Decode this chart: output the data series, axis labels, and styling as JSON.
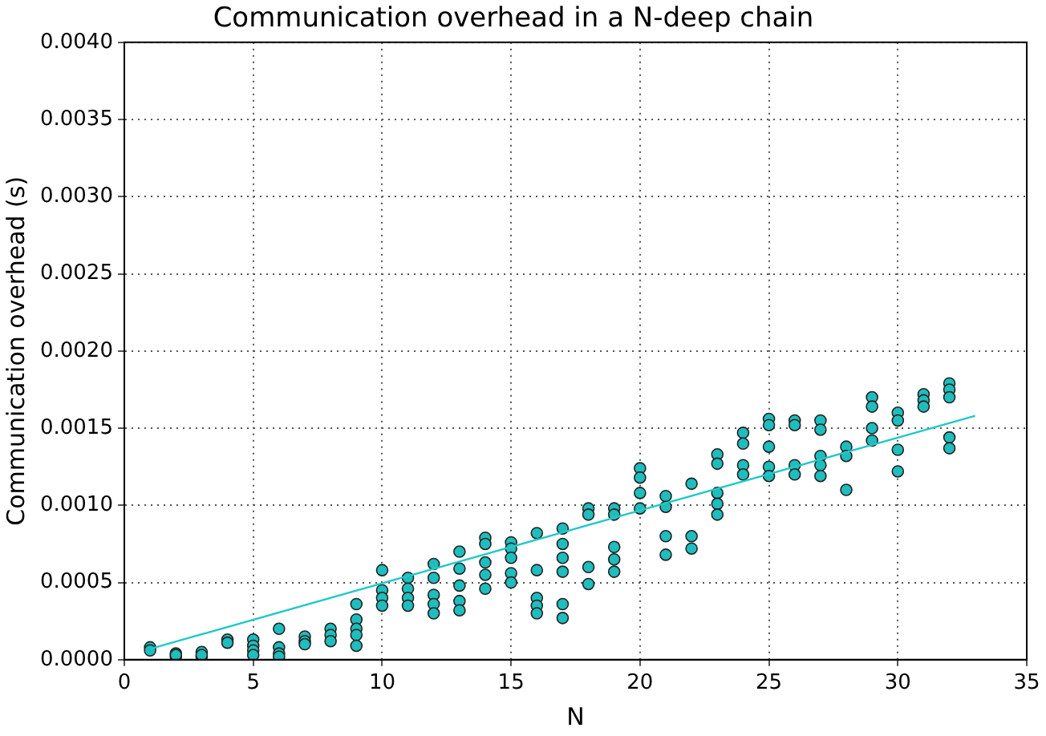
{
  "chart_data": {
    "type": "scatter",
    "title": "Communication overhead in a N-deep chain",
    "xlabel": "N",
    "ylabel": "Communication overhead (s)",
    "xlim": [
      0,
      35
    ],
    "xticks": [
      0,
      5,
      10,
      15,
      20,
      25,
      30,
      35
    ],
    "ylim": [
      0,
      0.004
    ],
    "yticks": [
      {
        "value": 0,
        "label": "0.0000"
      },
      {
        "value": 0.0005,
        "label": "0.0005"
      },
      {
        "value": 0.001,
        "label": "0.0010"
      },
      {
        "value": 0.0015,
        "label": "0.0015"
      },
      {
        "value": 0.002,
        "label": "0.0020"
      },
      {
        "value": 0.0025,
        "label": "0.0025"
      },
      {
        "value": 0.003,
        "label": "0.0030"
      },
      {
        "value": 0.0035,
        "label": "0.0035"
      },
      {
        "value": 0.004,
        "label": "0.0040"
      }
    ],
    "grid": true,
    "legend": false,
    "series": [
      {
        "color": "#1fbdbd",
        "marker": "circle",
        "x": [
          1,
          1,
          2,
          2,
          2,
          3,
          3,
          3,
          4,
          4,
          5,
          5,
          5,
          5,
          6,
          6,
          6,
          6,
          7,
          7,
          7,
          8,
          8,
          8,
          9,
          9,
          9,
          9,
          9,
          10,
          10,
          10,
          10,
          11,
          11,
          11,
          11,
          12,
          12,
          12,
          12,
          12,
          13,
          13,
          13,
          13,
          13,
          14,
          14,
          14,
          14,
          14,
          15,
          15,
          15,
          15,
          15,
          16,
          16,
          16,
          16,
          16,
          17,
          17,
          17,
          17,
          17,
          17,
          18,
          18,
          18,
          18,
          19,
          19,
          19,
          19,
          19,
          20,
          20,
          20,
          20,
          21,
          21,
          21,
          21,
          22,
          22,
          22,
          23,
          23,
          23,
          23,
          23,
          24,
          24,
          24,
          24,
          25,
          25,
          25,
          25,
          25,
          26,
          26,
          26,
          26,
          27,
          27,
          27,
          27,
          27,
          28,
          28,
          28,
          29,
          29,
          29,
          29,
          30,
          30,
          30,
          30,
          31,
          31,
          31,
          32,
          32,
          32,
          32,
          32
        ],
        "values": [
          8e-05,
          6e-05,
          4e-05,
          2e-05,
          3e-05,
          5e-05,
          2e-05,
          3e-05,
          0.00013,
          0.00011,
          0.00013,
          9e-05,
          6e-05,
          3e-05,
          0.0002,
          8e-05,
          4e-05,
          2e-05,
          0.00015,
          0.00012,
          0.0001,
          0.0002,
          0.00016,
          0.00012,
          0.00036,
          0.00026,
          0.0002,
          0.00016,
          9e-05,
          0.00058,
          0.00045,
          0.0004,
          0.00035,
          0.00053,
          0.00046,
          0.0004,
          0.00035,
          0.00062,
          0.00053,
          0.00042,
          0.00036,
          0.0003,
          0.0007,
          0.00059,
          0.00048,
          0.00038,
          0.00032,
          0.00079,
          0.00075,
          0.00063,
          0.00055,
          0.00046,
          0.00076,
          0.00072,
          0.00066,
          0.00056,
          0.0005,
          0.00082,
          0.00058,
          0.0004,
          0.00035,
          0.0003,
          0.00085,
          0.00075,
          0.00066,
          0.00057,
          0.00036,
          0.00027,
          0.00098,
          0.00094,
          0.0006,
          0.00049,
          0.00098,
          0.00094,
          0.00073,
          0.00065,
          0.00057,
          0.00124,
          0.00118,
          0.00108,
          0.00098,
          0.00106,
          0.00099,
          0.0008,
          0.00068,
          0.00114,
          0.0008,
          0.00072,
          0.00133,
          0.00127,
          0.00108,
          0.00101,
          0.00094,
          0.00147,
          0.0014,
          0.00126,
          0.0012,
          0.00156,
          0.00152,
          0.00138,
          0.00125,
          0.00119,
          0.00155,
          0.00152,
          0.00126,
          0.0012,
          0.00155,
          0.00149,
          0.00132,
          0.00126,
          0.00119,
          0.00138,
          0.00132,
          0.0011,
          0.0017,
          0.00164,
          0.0015,
          0.00142,
          0.0016,
          0.00155,
          0.00136,
          0.00122,
          0.00172,
          0.00168,
          0.00164,
          0.00179,
          0.00175,
          0.0017,
          0.00144,
          0.00137
        ]
      },
      {
        "type": "line",
        "color": "#22c8c8",
        "x": [
          1,
          33
        ],
        "values": [
          7e-05,
          0.00158
        ]
      }
    ]
  }
}
